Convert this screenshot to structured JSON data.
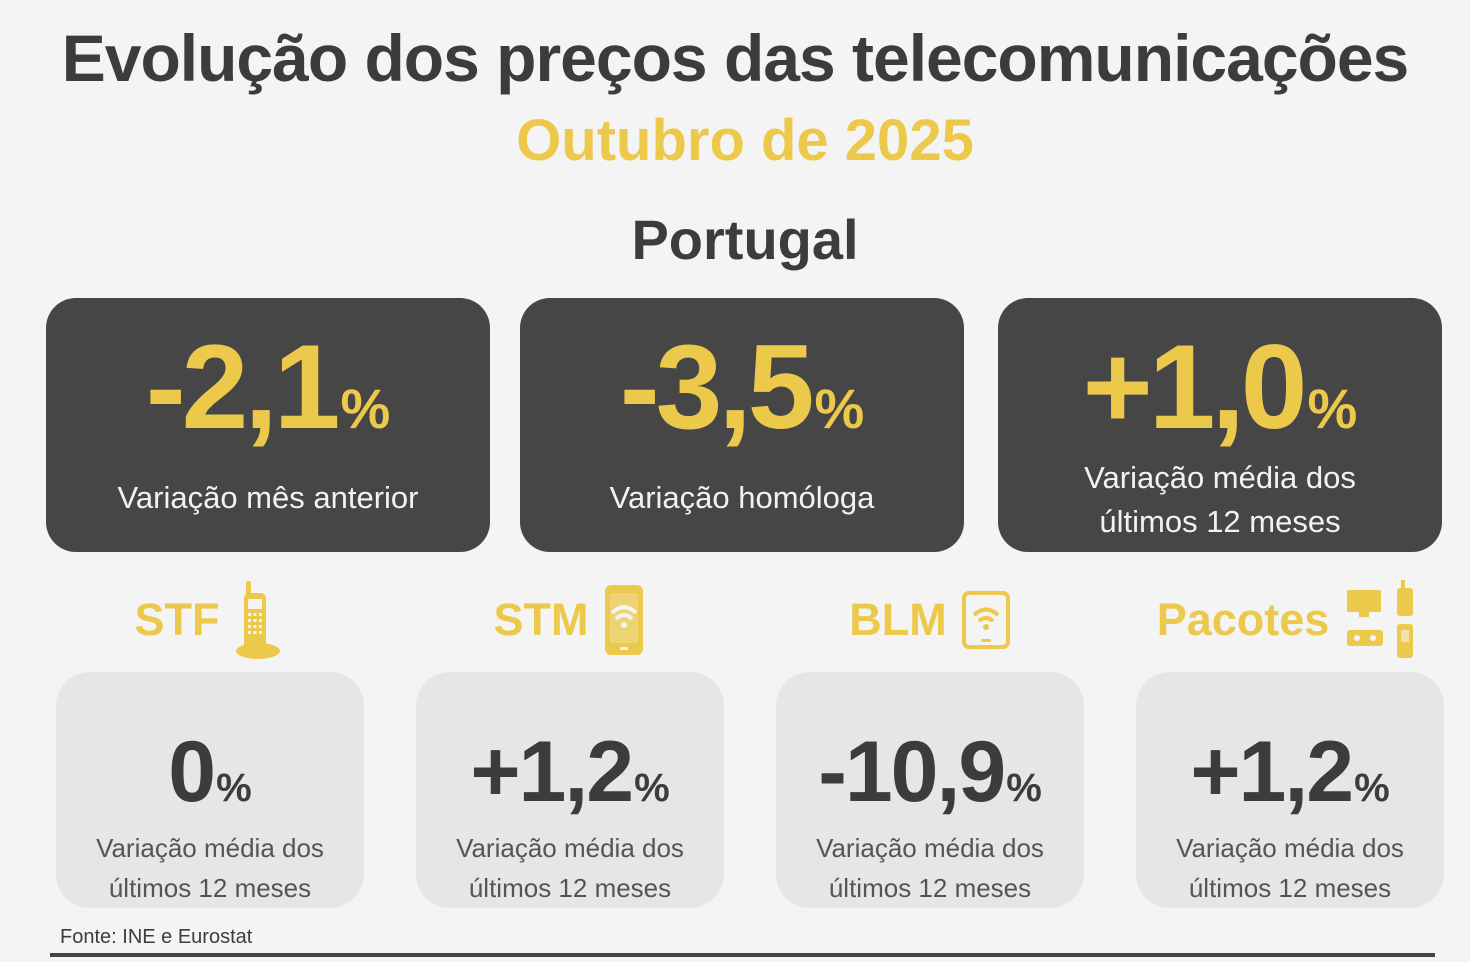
{
  "header": {
    "title": "Evolução dos preços das telecomunicações",
    "subtitle": "Outubro de 2025",
    "region": "Portugal"
  },
  "summary": [
    {
      "value": "-2,1",
      "unit": "%",
      "label": "Variação mês anterior",
      "label2": ""
    },
    {
      "value": "-3,5",
      "unit": "%",
      "label": "Variação homóloga",
      "label2": ""
    },
    {
      "value": "+1,0",
      "unit": "%",
      "label": "Variação média dos",
      "label2": "últimos 12 meses"
    }
  ],
  "categories": [
    {
      "name": "STF",
      "icon": "cordless-phone-icon",
      "value": "0",
      "unit": "%",
      "label": "Variação média dos",
      "label2": "últimos 12 meses"
    },
    {
      "name": "STM",
      "icon": "smartphone-wifi-icon",
      "value": "+1,2",
      "unit": "%",
      "label": "Variação média dos",
      "label2": "últimos 12 meses"
    },
    {
      "name": "BLM",
      "icon": "tablet-wifi-icon",
      "value": "-10,9",
      "unit": "%",
      "label": "Variação média dos",
      "label2": "últimos 12 meses"
    },
    {
      "name": "Pacotes",
      "icon": "bundle-devices-icon",
      "value": "+1,2",
      "unit": "%",
      "label": "Variação média dos",
      "label2": "últimos 12 meses"
    }
  ],
  "footer": {
    "source": "Fonte: INE e Eurostat"
  },
  "colors": {
    "accent": "#ecc94b",
    "dark_card": "#464646",
    "light_card": "#e6e6e6",
    "text_dark": "#3c3c3c",
    "background": "#f4f4f4"
  }
}
